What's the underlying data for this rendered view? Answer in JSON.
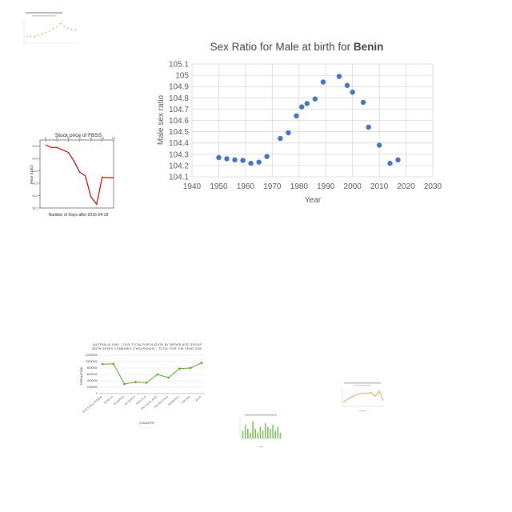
{
  "chart_data": [
    {
      "id": "benin",
      "type": "scatter",
      "title_prefix": "Sex Ratio for Male at birth for ",
      "title_bold": "Benin",
      "xlabel": "Year",
      "ylabel": "Male sex ratio",
      "xlim": [
        1940,
        2030
      ],
      "ylim": [
        104.1,
        105.1
      ],
      "xticks": [
        "1940",
        "1950",
        "1960",
        "1970",
        "1980",
        "1990",
        "2000",
        "2010",
        "2020",
        "2030"
      ],
      "yticks": [
        "104.1",
        "104.2",
        "104.3",
        "104.4",
        "104.5",
        "104.6",
        "104.7",
        "104.8",
        "104.9",
        "105",
        "105.1"
      ],
      "grid": true,
      "color": "#4472C4",
      "points": [
        [
          1950,
          104.27
        ],
        [
          1953,
          104.26
        ],
        [
          1956,
          104.25
        ],
        [
          1959,
          104.245
        ],
        [
          1962,
          104.22
        ],
        [
          1965,
          104.23
        ],
        [
          1968,
          104.28
        ],
        [
          1973,
          104.44
        ],
        [
          1976,
          104.49
        ],
        [
          1979,
          104.64
        ],
        [
          1981,
          104.72
        ],
        [
          1983,
          104.75
        ],
        [
          1986,
          104.79
        ],
        [
          1989,
          104.94
        ],
        [
          1995,
          104.99
        ],
        [
          1998,
          104.91
        ],
        [
          2000,
          104.85
        ],
        [
          2004,
          104.76
        ],
        [
          2006,
          104.54
        ],
        [
          2010,
          104.38
        ],
        [
          2014,
          104.22
        ],
        [
          2017,
          104.25
        ]
      ]
    },
    {
      "id": "fbss",
      "type": "line",
      "title": "Stock price of FBSS",
      "xlabel": "Number of Days after 2016-04-18",
      "ylabel": "Price (USD)",
      "xlim": [
        -1,
        12
      ],
      "ylim": [
        14.1,
        14.65
      ],
      "xticks": [
        "0",
        "2",
        "4",
        "6",
        "8",
        "10",
        "12"
      ],
      "yticks": [
        "14.1",
        "14.2",
        "14.3",
        "14.4",
        "14.5",
        "14.6"
      ],
      "color": "#cc0000",
      "x": [
        0,
        1,
        2,
        3,
        4,
        5,
        6,
        7,
        8,
        9,
        10,
        11,
        12
      ],
      "y": [
        14.61,
        14.59,
        14.59,
        14.57,
        14.55,
        14.48,
        14.39,
        14.36,
        14.19,
        14.13,
        14.35,
        14.345,
        14.345
      ]
    },
    {
      "id": "australia",
      "type": "line",
      "title_lines": [
        "AUSTRALIA 1950 - 2100: TOTAL POPULATION BY BROAD AGE GROUP",
        "BOTH SEXES COMBINED (THOUSANDS) - TOTAL FOR THE YEAR 2020"
      ],
      "xlabel": "COUNTRY",
      "ylabel": "POPULATION",
      "ylim": [
        0,
        12000000
      ],
      "yticks": [
        "0",
        "2000000",
        "4000000",
        "6000000",
        "8000000",
        "10000000",
        "12000000"
      ],
      "categories": [
        "AUSTRALIA/NEW",
        "AFRICA",
        "ALBANIA",
        "ALGERIA",
        "ANGOLA",
        "ANTIGUA AND",
        "ARGENTINA",
        "ARMENIA",
        "ARUBA",
        "ASIA"
      ],
      "values": [
        9200000,
        9300000,
        3000000,
        3600000,
        3400000,
        6000000,
        5000000,
        7800000,
        8000000,
        9600000
      ],
      "color": "#5aa02c"
    },
    {
      "id": "orange-thumb",
      "type": "line",
      "color": "#f08a30",
      "values": [
        0.2,
        0.35,
        0.5,
        0.62,
        0.7,
        0.74,
        0.72,
        0.78,
        0.55,
        0.86,
        0.3
      ]
    },
    {
      "id": "green-thumb",
      "type": "bar",
      "color": "#7cc05a",
      "values": [
        0.4,
        0.7,
        0.5,
        0.3,
        0.9,
        0.5,
        0.3,
        0.6,
        0.4,
        0.8,
        0.6,
        0.5,
        0.7,
        0.4,
        0.6,
        0.3
      ]
    },
    {
      "id": "topleft-thumb",
      "type": "scatter",
      "color": "#e8843a",
      "values": [
        0.25,
        0.26,
        0.24,
        0.3,
        0.38,
        0.45,
        0.5,
        0.62,
        0.7,
        0.86,
        0.72,
        0.64,
        0.58,
        0.55
      ]
    }
  ]
}
